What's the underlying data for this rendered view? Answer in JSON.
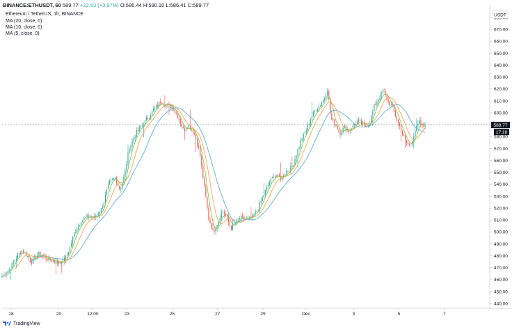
{
  "header": {
    "symbol": "BINANCE:ETHUSDT, 60",
    "last": "589.77",
    "change": "+22.53 (+3.97%)",
    "o": "O:586.44",
    "h": "H:590.10",
    "l": "L:586.41",
    "c": "C:589.77",
    "subtitle": "Ethereum / TetherUS, 1h, BINANCE"
  },
  "indicators": [
    "MA (20, close, 0)",
    "MA (10, close, 0)",
    "MA (5, close, 0)"
  ],
  "footer": {
    "brand": "TradingView"
  },
  "price_axis": {
    "currency": "USDT",
    "last_price_label": "589.77",
    "countdown_label": "17:18"
  },
  "colors": {
    "up": "#26a69a",
    "down": "#ef5350",
    "ma20": "#5aaed8",
    "ma10": "#f4a261",
    "ma5": "#8bc34a",
    "price_line": "#7f7f7f",
    "last_badge": "#131722"
  },
  "chart_data": {
    "type": "candlestick",
    "ylim": [
      436,
      690
    ],
    "y_ticks": [
      440,
      450,
      460,
      470,
      480,
      490,
      500,
      510,
      520,
      530,
      540,
      550,
      560,
      570,
      580,
      590,
      600,
      610,
      620,
      630,
      640,
      650,
      660,
      670,
      680
    ],
    "x_ticks": [
      {
        "label": "18",
        "at": 0.4
      },
      {
        "label": "20",
        "at": 2.5
      },
      {
        "label": "12:00",
        "at": 4.0
      },
      {
        "label": "23",
        "at": 5.5
      },
      {
        "label": "25",
        "at": 7.5
      },
      {
        "label": "27",
        "at": 9.5
      },
      {
        "label": "29",
        "at": 11.5
      },
      {
        "label": "Dec",
        "at": 13.4
      },
      {
        "label": "3",
        "at": 15.5
      },
      {
        "label": "5",
        "at": 17.5
      },
      {
        "label": "7",
        "at": 19.5
      }
    ],
    "xlim": [
      0,
      21.5
    ],
    "last_price": 589.77,
    "path": [
      [
        0.0,
        463
      ],
      [
        0.3,
        468
      ],
      [
        0.6,
        478
      ],
      [
        0.9,
        485
      ],
      [
        1.1,
        480
      ],
      [
        1.3,
        475
      ],
      [
        1.6,
        482
      ],
      [
        1.9,
        478
      ],
      [
        2.2,
        476
      ],
      [
        2.5,
        474
      ],
      [
        2.8,
        478
      ],
      [
        3.0,
        487
      ],
      [
        3.2,
        500
      ],
      [
        3.5,
        510
      ],
      [
        3.8,
        513
      ],
      [
        4.1,
        512
      ],
      [
        4.4,
        520
      ],
      [
        4.7,
        540
      ],
      [
        5.0,
        546
      ],
      [
        5.2,
        535
      ],
      [
        5.4,
        548
      ],
      [
        5.6,
        570
      ],
      [
        5.9,
        583
      ],
      [
        6.2,
        590
      ],
      [
        6.5,
        598
      ],
      [
        6.8,
        605
      ],
      [
        7.0,
        610
      ],
      [
        7.2,
        607
      ],
      [
        7.5,
        605
      ],
      [
        7.8,
        595
      ],
      [
        8.0,
        585
      ],
      [
        8.2,
        590
      ],
      [
        8.5,
        582
      ],
      [
        8.7,
        568
      ],
      [
        8.9,
        540
      ],
      [
        9.1,
        512
      ],
      [
        9.3,
        500
      ],
      [
        9.5,
        508
      ],
      [
        9.7,
        518
      ],
      [
        9.9,
        512
      ],
      [
        10.1,
        503
      ],
      [
        10.3,
        508
      ],
      [
        10.5,
        512
      ],
      [
        10.8,
        510
      ],
      [
        11.0,
        512
      ],
      [
        11.3,
        520
      ],
      [
        11.5,
        530
      ],
      [
        11.8,
        542
      ],
      [
        12.0,
        548
      ],
      [
        12.3,
        545
      ],
      [
        12.5,
        550
      ],
      [
        12.8,
        555
      ],
      [
        13.0,
        567
      ],
      [
        13.2,
        578
      ],
      [
        13.4,
        585
      ],
      [
        13.6,
        595
      ],
      [
        13.8,
        602
      ],
      [
        14.0,
        606
      ],
      [
        14.2,
        612
      ],
      [
        14.35,
        620
      ],
      [
        14.5,
        595
      ],
      [
        14.7,
        590
      ],
      [
        14.9,
        583
      ],
      [
        15.1,
        588
      ],
      [
        15.3,
        585
      ],
      [
        15.5,
        590
      ],
      [
        15.7,
        593
      ],
      [
        16.0,
        588
      ],
      [
        16.2,
        592
      ],
      [
        16.4,
        605
      ],
      [
        16.6,
        612
      ],
      [
        16.8,
        618
      ],
      [
        17.0,
        610
      ],
      [
        17.2,
        605
      ],
      [
        17.4,
        595
      ],
      [
        17.6,
        585
      ],
      [
        17.8,
        575
      ],
      [
        18.0,
        572
      ],
      [
        18.2,
        585
      ],
      [
        18.4,
        592
      ],
      [
        18.55,
        588
      ],
      [
        18.65,
        589.77
      ]
    ]
  }
}
